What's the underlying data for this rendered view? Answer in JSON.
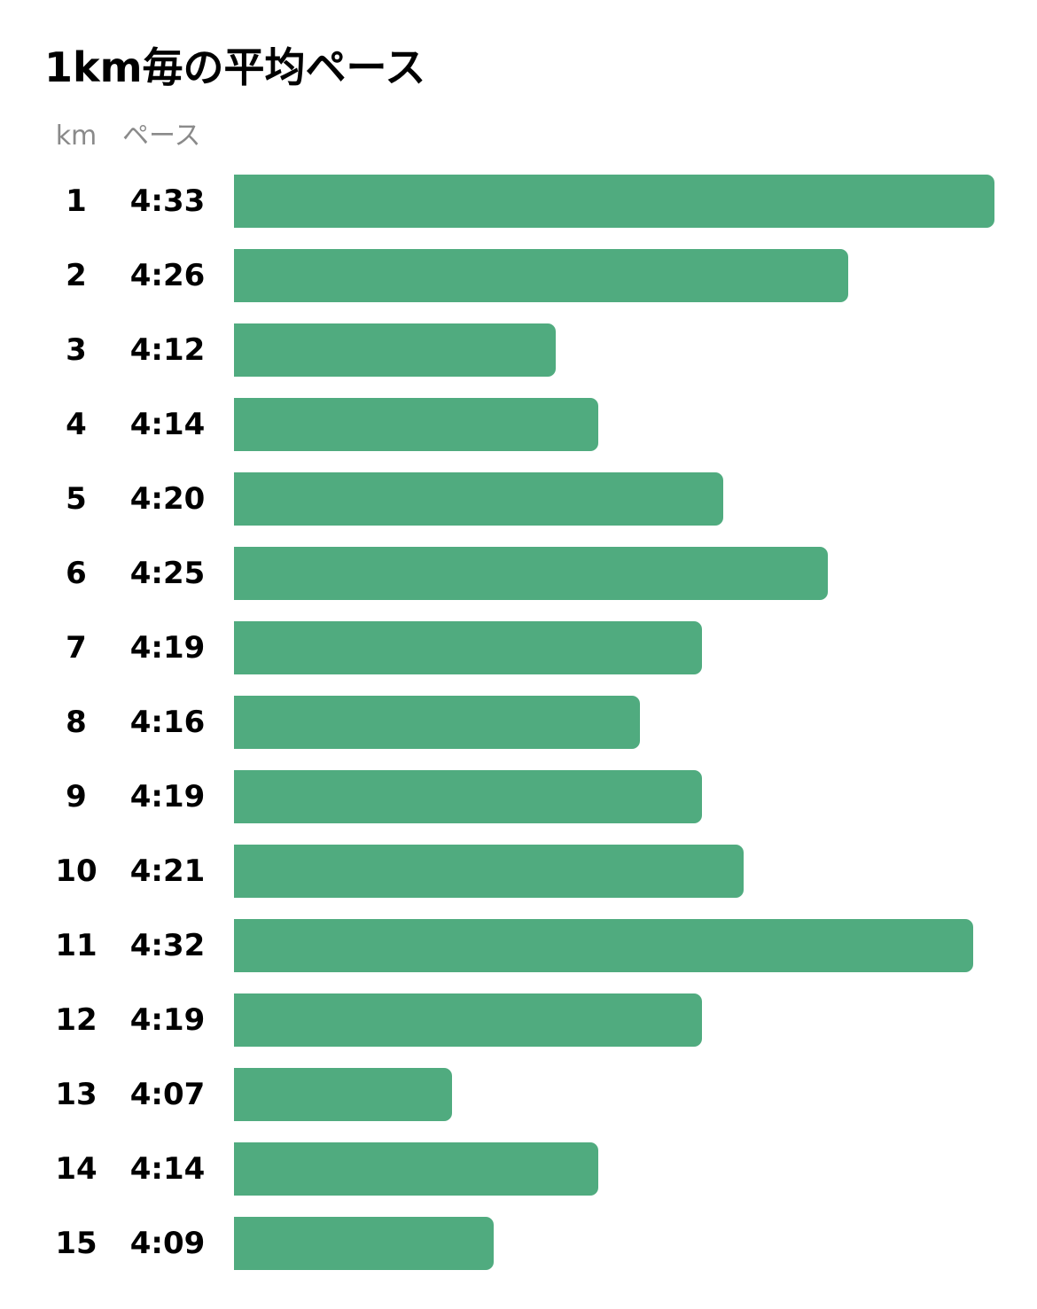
{
  "chart_data": {
    "type": "bar",
    "orientation": "horizontal",
    "title": "1km毎の平均ペース",
    "columns": [
      "km",
      "ペース"
    ],
    "categories": [
      "1",
      "2",
      "3",
      "4",
      "5",
      "6",
      "7",
      "8",
      "9",
      "10",
      "11",
      "12",
      "13",
      "14",
      "15"
    ],
    "labels": [
      "4:33",
      "4:26",
      "4:12",
      "4:14",
      "4:20",
      "4:25",
      "4:19",
      "4:16",
      "4:19",
      "4:21",
      "4:32",
      "4:19",
      "4:07",
      "4:14",
      "4:09"
    ],
    "values": [
      273,
      266,
      252,
      254,
      260,
      265,
      259,
      256,
      259,
      261,
      272,
      259,
      247,
      254,
      249
    ],
    "value_unit": "seconds per km",
    "bar_color": "#50ab7f",
    "grid": false,
    "legend": "none"
  }
}
